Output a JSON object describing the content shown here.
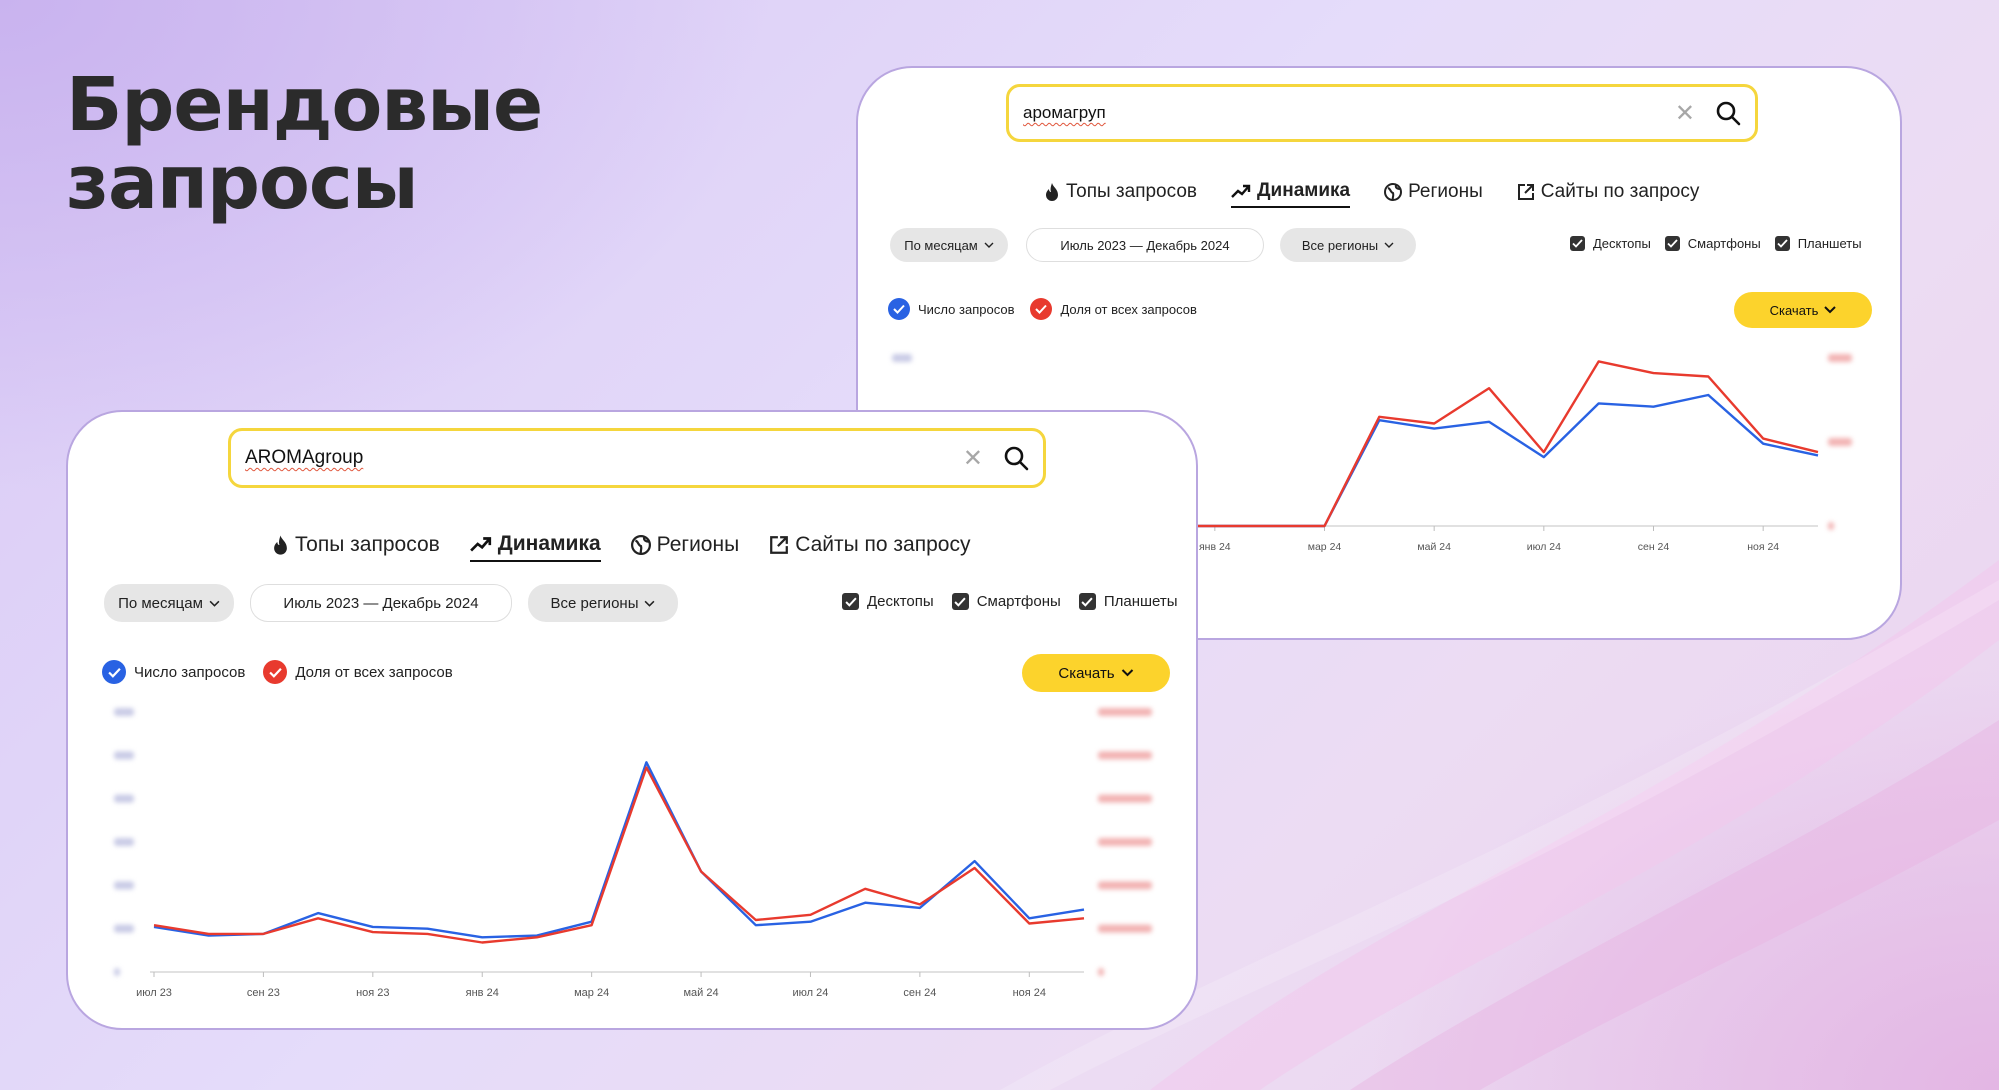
{
  "headline": {
    "line1": "Брендовые",
    "line2": "запросы"
  },
  "tabs": [
    {
      "label": "Топы запросов",
      "icon": "fire-icon",
      "active": false
    },
    {
      "label": "Динамика",
      "icon": "trend-icon",
      "active": true
    },
    {
      "label": "Регионы",
      "icon": "globe-icon",
      "active": false
    },
    {
      "label": "Сайты по запросу",
      "icon": "external-link-icon",
      "active": false
    }
  ],
  "filters": {
    "period": "По месяцам",
    "date_range": "Июль 2023 — Декабрь 2024",
    "regions": "Все регионы"
  },
  "devices": [
    "Десктопы",
    "Смартфоны",
    "Планшеты"
  ],
  "legend": {
    "count": {
      "label": "Число запросов",
      "color": "#2962e3"
    },
    "share": {
      "label": "Доля от всех запросов",
      "color": "#e83a2e"
    }
  },
  "download_label": "Скачать",
  "back_card": {
    "search_value": "аромагруп",
    "x_ticks": [
      "янв 24",
      "мар 24",
      "май 24",
      "июл 24",
      "сен 24",
      "ноя 24"
    ]
  },
  "front_card": {
    "search_value": "AROMAgroup",
    "x_ticks": [
      "июл 23",
      "сен 23",
      "ноя 23",
      "янв 24",
      "мар 24",
      "май 24",
      "июл 24",
      "сен 24",
      "ноя 24"
    ]
  },
  "chart_data": [
    {
      "type": "line",
      "title": "",
      "x": [
        "дек 23",
        "янв 24",
        "фев 24",
        "мар 24",
        "апр 24",
        "май 24",
        "июн 24",
        "июл 24",
        "авг 24",
        "сен 24",
        "окт 24",
        "ноя 24",
        "дек 24"
      ],
      "x_ticks": [
        "янв 24",
        "мар 24",
        "май 24",
        "июл 24",
        "сен 24",
        "ноя 24"
      ],
      "series": [
        {
          "name": "Число запросов",
          "color": "#2962e3",
          "values": [
            0,
            0,
            0,
            0,
            63,
            58,
            62,
            41,
            73,
            71,
            78,
            49,
            42
          ]
        },
        {
          "name": "Доля от всех запросов",
          "color": "#e83a2e",
          "values": [
            0,
            0,
            0,
            0,
            65,
            61,
            82,
            44,
            98,
            91,
            89,
            52,
            44
          ]
        }
      ],
      "ylim": [
        0,
        100
      ],
      "y_tick_labels": "blurred",
      "grid": false
    },
    {
      "type": "line",
      "title": "",
      "x": [
        "июл 23",
        "авг 23",
        "сен 23",
        "окт 23",
        "ноя 23",
        "дек 23",
        "янв 24",
        "фев 24",
        "мар 24",
        "апр 24",
        "май 24",
        "июн 24",
        "июл 24",
        "авг 24",
        "сен 24",
        "окт 24",
        "ноя 24",
        "дек 24"
      ],
      "x_ticks": [
        "июл 23",
        "сен 23",
        "ноя 23",
        "янв 24",
        "мар 24",
        "май 24",
        "июл 24",
        "сен 24",
        "ноя 24"
      ],
      "series": [
        {
          "name": "Число запросов",
          "color": "#2962e3",
          "values": [
            26,
            21,
            22,
            34,
            26,
            25,
            20,
            21,
            29,
            121,
            58,
            27,
            29,
            40,
            37,
            64,
            31,
            36
          ]
        },
        {
          "name": "Доля от всех запросов",
          "color": "#e83a2e",
          "values": [
            27,
            22,
            22,
            31,
            23,
            22,
            17,
            20,
            27,
            118,
            58,
            30,
            33,
            48,
            39,
            60,
            28,
            31
          ]
        }
      ],
      "ylim": [
        0,
        150
      ],
      "y_tick_labels": "blurred",
      "grid": false
    }
  ]
}
